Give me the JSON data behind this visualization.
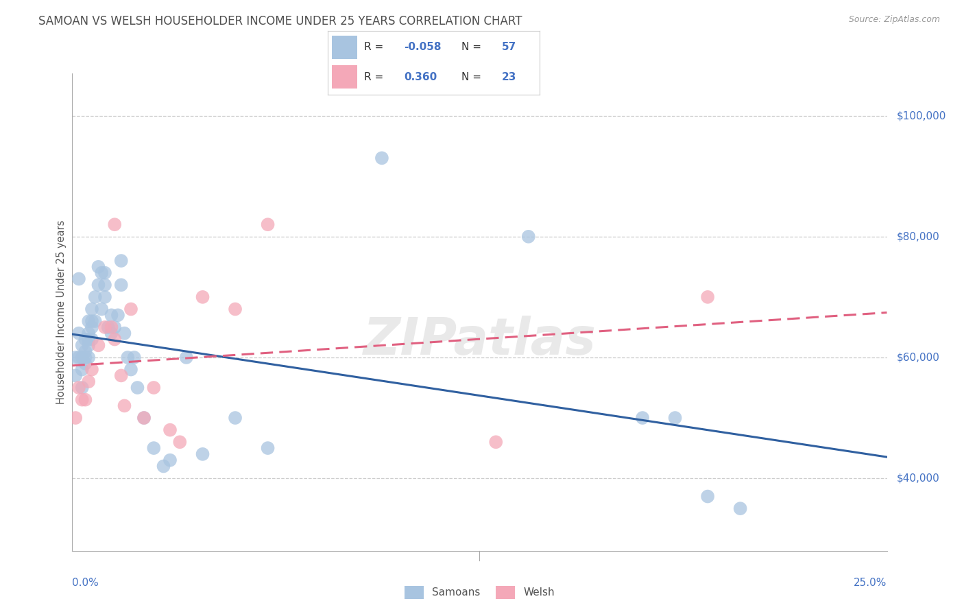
{
  "title": "SAMOAN VS WELSH HOUSEHOLDER INCOME UNDER 25 YEARS CORRELATION CHART",
  "source": "Source: ZipAtlas.com",
  "ylabel": "Householder Income Under 25 years",
  "ylabel_right_ticks": [
    "$100,000",
    "$80,000",
    "$60,000",
    "$40,000"
  ],
  "ylabel_right_vals": [
    100000,
    80000,
    60000,
    40000
  ],
  "xlim": [
    0.0,
    0.25
  ],
  "ylim": [
    28000,
    107000
  ],
  "watermark": "ZIPatlas",
  "samoans_R": "-0.058",
  "samoans_N": "57",
  "welsh_R": "0.360",
  "welsh_N": "23",
  "samoans_color": "#a8c4e0",
  "welsh_color": "#f4a8b8",
  "samoans_line_color": "#3060a0",
  "welsh_line_color": "#e06080",
  "legend_R_color": "#4472c4",
  "samoans_x": [
    0.001,
    0.001,
    0.002,
    0.002,
    0.002,
    0.003,
    0.003,
    0.003,
    0.003,
    0.004,
    0.004,
    0.004,
    0.004,
    0.005,
    0.005,
    0.005,
    0.005,
    0.005,
    0.006,
    0.006,
    0.006,
    0.006,
    0.007,
    0.007,
    0.008,
    0.008,
    0.009,
    0.009,
    0.01,
    0.01,
    0.01,
    0.011,
    0.012,
    0.012,
    0.013,
    0.014,
    0.015,
    0.015,
    0.016,
    0.017,
    0.018,
    0.019,
    0.02,
    0.022,
    0.025,
    0.028,
    0.03,
    0.035,
    0.04,
    0.05,
    0.06,
    0.095,
    0.14,
    0.175,
    0.185,
    0.195,
    0.205
  ],
  "samoans_y": [
    60000,
    57000,
    73000,
    64000,
    60000,
    62000,
    60000,
    58000,
    55000,
    63000,
    61000,
    60000,
    59000,
    66000,
    64000,
    63000,
    62000,
    60000,
    68000,
    66000,
    65000,
    63000,
    70000,
    66000,
    75000,
    72000,
    74000,
    68000,
    74000,
    72000,
    70000,
    65000,
    67000,
    64000,
    65000,
    67000,
    76000,
    72000,
    64000,
    60000,
    58000,
    60000,
    55000,
    50000,
    45000,
    42000,
    43000,
    60000,
    44000,
    50000,
    45000,
    93000,
    80000,
    50000,
    50000,
    37000,
    35000
  ],
  "welsh_x": [
    0.001,
    0.002,
    0.003,
    0.004,
    0.005,
    0.006,
    0.008,
    0.01,
    0.012,
    0.013,
    0.013,
    0.015,
    0.016,
    0.018,
    0.022,
    0.025,
    0.03,
    0.033,
    0.04,
    0.05,
    0.06,
    0.13,
    0.195
  ],
  "welsh_y": [
    50000,
    55000,
    53000,
    53000,
    56000,
    58000,
    62000,
    65000,
    65000,
    63000,
    82000,
    57000,
    52000,
    68000,
    50000,
    55000,
    48000,
    46000,
    70000,
    68000,
    82000,
    46000,
    70000
  ],
  "background_color": "#ffffff",
  "grid_color": "#cccccc",
  "title_color": "#505050",
  "tick_label_color": "#4472c4"
}
